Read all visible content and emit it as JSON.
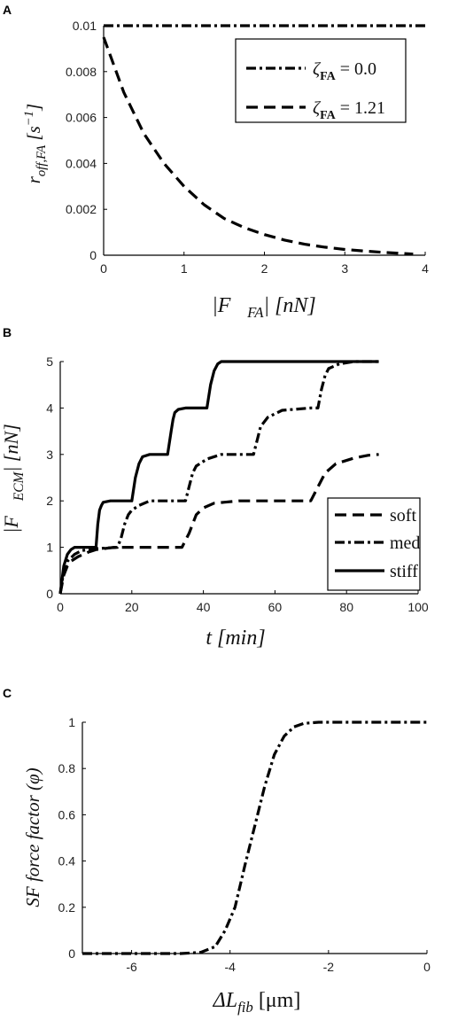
{
  "chart_data": [
    {
      "panel": "A",
      "type": "line",
      "xlim": [
        0,
        4
      ],
      "ylim": [
        0,
        0.01
      ],
      "xticks": [
        "0",
        "1",
        "2",
        "3",
        "4"
      ],
      "yticks": [
        "0",
        "0.002",
        "0.004",
        "0.006",
        "0.008",
        "0.01"
      ],
      "xticks_values": [
        0,
        1,
        2,
        3,
        4
      ],
      "yticks_values": [
        0,
        0.002,
        0.004,
        0.006,
        0.008,
        0.01
      ],
      "xlabel": "|F⃗FA| [nN]",
      "ylabel": "roff,FA [s⁻¹]",
      "legend_position": "top-right",
      "grid": false,
      "series": [
        {
          "name": "ζFA = 0.0",
          "legend_label": "ζFA = 0.0",
          "style": "dashdot",
          "x": [
            0,
            0.5,
            1,
            1.5,
            2,
            2.5,
            3,
            3.5,
            4
          ],
          "y": [
            0.01,
            0.01,
            0.01,
            0.01,
            0.01,
            0.01,
            0.01,
            0.01,
            0.01
          ]
        },
        {
          "name": "ζFA = 1.21",
          "legend_label": "ζFA = 1.21",
          "style": "dashed",
          "x": [
            0,
            0.25,
            0.5,
            0.75,
            1,
            1.25,
            1.5,
            1.75,
            2,
            2.25,
            2.5,
            2.75,
            3,
            3.25,
            3.5,
            3.85
          ],
          "y": [
            0.0095,
            0.0071,
            0.0053,
            0.004,
            0.003,
            0.0022,
            0.0016,
            0.0012,
            0.0009,
            0.00066,
            0.00048,
            0.00035,
            0.00025,
            0.00018,
            0.00012,
            5e-05
          ]
        }
      ]
    },
    {
      "panel": "B",
      "type": "line",
      "xlim": [
        0,
        100
      ],
      "ylim": [
        0,
        5
      ],
      "xticks": [
        "0",
        "20",
        "40",
        "60",
        "80",
        "100"
      ],
      "yticks": [
        "0",
        "1",
        "2",
        "3",
        "4",
        "5"
      ],
      "xticks_values": [
        0,
        20,
        40,
        60,
        80,
        100
      ],
      "yticks_values": [
        0,
        1,
        2,
        3,
        4,
        5
      ],
      "xlabel": "t [min]",
      "ylabel": "|F⃗ECM| [nN]",
      "legend_position": "bottom-right",
      "grid": false,
      "series": [
        {
          "name": "soft",
          "style": "dashed",
          "x": [
            0,
            1,
            2,
            3,
            5,
            8,
            10,
            15,
            34,
            36,
            38,
            40,
            43,
            50,
            70,
            72,
            74,
            77,
            82,
            86,
            89
          ],
          "y": [
            0,
            0.4,
            0.6,
            0.7,
            0.8,
            0.9,
            0.95,
            1.0,
            1.0,
            1.3,
            1.7,
            1.85,
            1.95,
            2.0,
            2.0,
            2.3,
            2.6,
            2.8,
            2.92,
            2.98,
            3.0
          ]
        },
        {
          "name": "med",
          "style": "dashdot",
          "x": [
            0,
            1,
            2,
            4,
            6,
            10,
            16,
            17,
            18,
            19,
            20,
            22,
            25,
            35,
            36,
            37,
            38,
            41,
            45,
            54,
            55,
            56,
            58,
            62,
            70,
            72,
            73,
            74,
            75,
            78,
            82,
            86,
            89
          ],
          "y": [
            0,
            0.5,
            0.7,
            0.85,
            0.93,
            0.97,
            1.0,
            1.2,
            1.5,
            1.7,
            1.8,
            1.9,
            2.0,
            2.0,
            2.3,
            2.6,
            2.75,
            2.9,
            3.0,
            3.0,
            3.3,
            3.6,
            3.8,
            3.95,
            4.0,
            4.0,
            4.4,
            4.7,
            4.85,
            4.95,
            5.0,
            5.0,
            5.0
          ]
        },
        {
          "name": "stiff",
          "style": "solid",
          "x": [
            0,
            1,
            2,
            3,
            4,
            6,
            10,
            10.5,
            11,
            11.5,
            12,
            14,
            20,
            21,
            22,
            23,
            25,
            30,
            31,
            31.5,
            32,
            33,
            35,
            41,
            42,
            43,
            44,
            45,
            50,
            70,
            85,
            89
          ],
          "y": [
            0,
            0.6,
            0.85,
            0.95,
            1.0,
            1.0,
            1.0,
            1.5,
            1.8,
            1.9,
            1.97,
            2.0,
            2.0,
            2.5,
            2.8,
            2.95,
            3.0,
            3.0,
            3.5,
            3.75,
            3.9,
            3.97,
            4.0,
            4.0,
            4.5,
            4.8,
            4.95,
            5.0,
            5.0,
            5.0,
            5.0,
            5.0
          ]
        }
      ]
    },
    {
      "panel": "C",
      "type": "line",
      "xlim": [
        -7,
        0
      ],
      "ylim": [
        0,
        1
      ],
      "xticks": [
        "-6",
        "-4",
        "-2",
        "0"
      ],
      "yticks": [
        "0",
        "0.2",
        "0.4",
        "0.6",
        "0.8",
        "1"
      ],
      "xticks_values": [
        -6,
        -4,
        -2,
        0
      ],
      "yticks_values": [
        0,
        0.2,
        0.4,
        0.6,
        0.8,
        1
      ],
      "xlabel": "ΔLfib [μm]",
      "ylabel": "SF force factor (φ)",
      "grid": false,
      "series": [
        {
          "style": "dashdot",
          "x": [
            -7,
            -6,
            -5,
            -4.6,
            -4.3,
            -4.1,
            -3.9,
            -3.7,
            -3.5,
            -3.3,
            -3.1,
            -2.9,
            -2.7,
            -2.5,
            -2.2,
            -1.5,
            0
          ],
          "y": [
            0,
            0,
            0,
            0.005,
            0.03,
            0.1,
            0.2,
            0.38,
            0.55,
            0.72,
            0.86,
            0.94,
            0.98,
            0.995,
            1.0,
            1.0,
            1.0
          ]
        }
      ]
    }
  ]
}
